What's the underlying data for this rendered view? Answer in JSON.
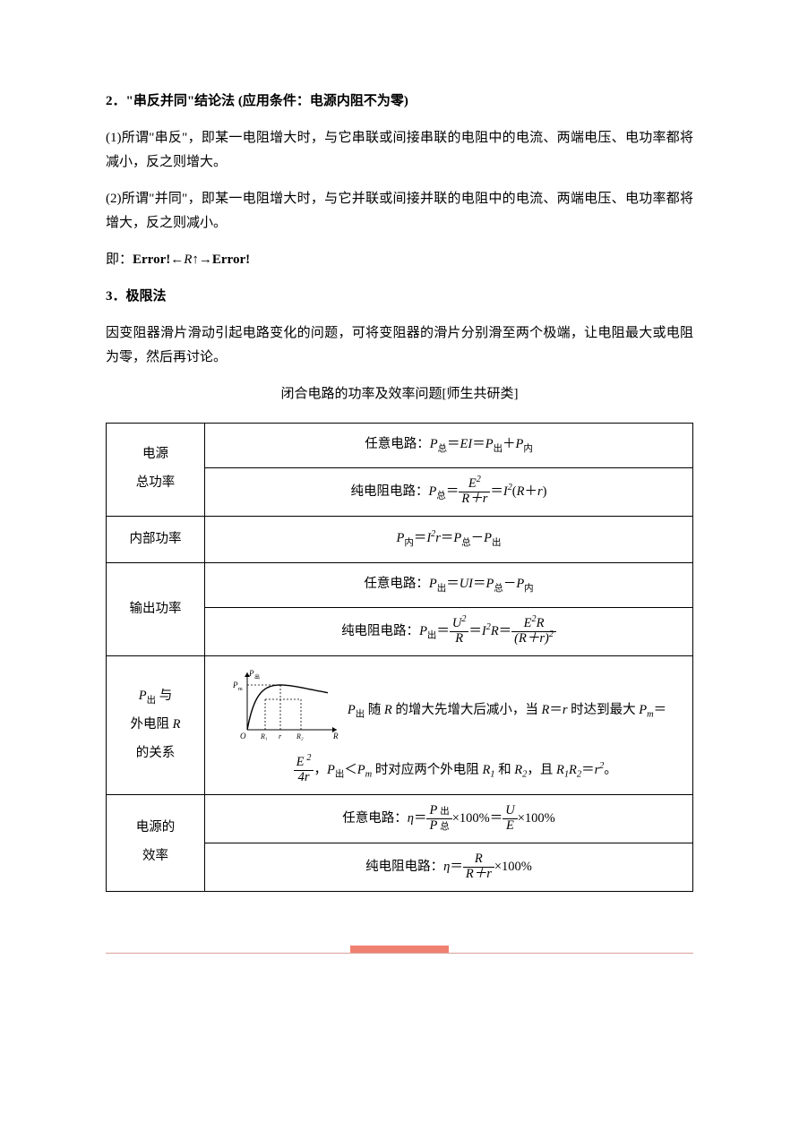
{
  "doc": {
    "sec2_title": "2．\"串反并同\"结论法 (应用条件：电源内阻不为零)",
    "p1": "(1)所谓\"串反\"，即某一电阻增大时，与它串联或间接串联的电阻中的电流、两端电压、电功率都将减小，反之则增大。",
    "p2": "(2)所谓\"并同\"，即某一电阻增大时，与它并联或间接并联的电阻中的电流、两端电压、电功率都将增大，反之则减小。",
    "p3_label": "即：",
    "p3_err1": "Error!",
    "p3_arrow1": "←",
    "p3_mid": "R",
    "p3_arrow_up": "↑",
    "p3_arrow2": "→",
    "p3_err2": "Error!",
    "sec3_title": "3．极限法",
    "p4": "因变阻器滑片滑动引起电路变化的问题，可将变阻器的滑片分别滑至两个极端，让电阻最大或电阻为零，然后再讨论。",
    "table_caption": "闭合电路的功率及效率问题[师生共研类]",
    "rows": {
      "r1_label_a": "电源",
      "r1_label_b": "总功率",
      "r1a_prefix": "任意电路：",
      "r1b_prefix": "纯电阻电路：",
      "r2_label": "内部功率",
      "r3_label": "输出功率",
      "r3a_prefix": "任意电路：",
      "r3b_prefix": "纯电阻电路：",
      "r4_label_a": "P",
      "r4_label_a2": " 与",
      "r4_label_b": "外电阻 ",
      "r4_label_c": "的关系",
      "r4_text1": " 随 ",
      "r4_text2": " 的增大先增大后减小，当 ",
      "r4_text3": " 时达到最大 ",
      "r4_text4": "，",
      "r4_text5": " 时对应两个外电阻 ",
      "r4_text6": " 和 ",
      "r4_text7": "，且 ",
      "r4_text8": "。",
      "r5_label_a": "电源的",
      "r5_label_b": "效率",
      "r5a_prefix": "任意电路：",
      "r5b_prefix": "纯电阻电路："
    },
    "math": {
      "P": "P",
      "E": "E",
      "I": "I",
      "R": "R",
      "r": "r",
      "U": "U",
      "eta": "η",
      "sub_zong": "总",
      "sub_chu": "出",
      "sub_nei": "内",
      "eq": "＝",
      "plus": "＋",
      "minus": "－",
      "lt": "＜",
      "Pm": "P",
      "sub_m": "m",
      "R1": "R",
      "R2": "R",
      "sub_1": "1",
      "sub_2": "2",
      "pct": "×100%",
      "sq": "2"
    },
    "graph": {
      "y_label": "P",
      "y_sub": "出",
      "pm_label": "P",
      "pm_sub": "m",
      "x_ticks": [
        "O",
        "R₁",
        "r",
        "R₂"
      ],
      "x_label": "R",
      "curve_color": "#000000",
      "axis_color": "#000000",
      "dash_color": "#000000",
      "bg": "#ffffff",
      "w": 130,
      "h": 90
    },
    "accent_color": "#f08070",
    "line_color": "#d9a09a"
  }
}
